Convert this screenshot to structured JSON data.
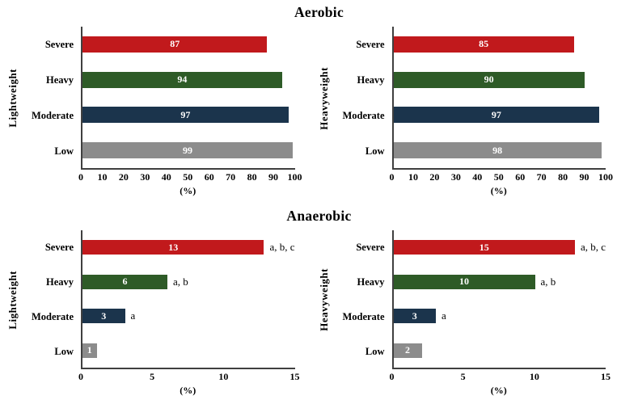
{
  "colors": {
    "bars": [
      "#C1191C",
      "#2E5B27",
      "#1B344C",
      "#8C8C8C"
    ],
    "bar_value_text": "#FFFFFF",
    "axis": "#404040",
    "text": "#000000",
    "background": "#FFFFFF"
  },
  "chart_data": [
    {
      "type": "bar",
      "orientation": "horizontal",
      "title": "Aerobic",
      "group": "Lightweight",
      "categories": [
        "Severe",
        "Heavy",
        "Moderate",
        "Low"
      ],
      "values": [
        87,
        94,
        97,
        99
      ],
      "annotations": [
        "",
        "",
        "",
        ""
      ],
      "xlabel": "(%)",
      "xlim": [
        0,
        100
      ],
      "xticks": [
        0,
        10,
        20,
        30,
        40,
        50,
        60,
        70,
        80,
        90,
        100
      ],
      "grid": false,
      "legend": false
    },
    {
      "type": "bar",
      "orientation": "horizontal",
      "title": "Aerobic",
      "group": "Heavyweight",
      "categories": [
        "Severe",
        "Heavy",
        "Moderate",
        "Low"
      ],
      "values": [
        85,
        90,
        97,
        98
      ],
      "annotations": [
        "",
        "",
        "",
        ""
      ],
      "xlabel": "(%)",
      "xlim": [
        0,
        100
      ],
      "xticks": [
        0,
        10,
        20,
        30,
        40,
        50,
        60,
        70,
        80,
        90,
        100
      ],
      "grid": false,
      "legend": false
    },
    {
      "type": "bar",
      "orientation": "horizontal",
      "title": "Anaerobic",
      "group": "Lightweight",
      "categories": [
        "Severe",
        "Heavy",
        "Moderate",
        "Low"
      ],
      "values": [
        13,
        6,
        3,
        1
      ],
      "annotations": [
        "a, b, c",
        "a, b",
        "a",
        ""
      ],
      "xlabel": "(%)",
      "xlim": [
        0,
        15
      ],
      "xticks": [
        0,
        5,
        10,
        15
      ],
      "grid": false,
      "legend": false
    },
    {
      "type": "bar",
      "orientation": "horizontal",
      "title": "Anaerobic",
      "group": "Heavyweight",
      "categories": [
        "Severe",
        "Heavy",
        "Moderate",
        "Low"
      ],
      "values": [
        15,
        10,
        3,
        2
      ],
      "annotations": [
        "a, b, c",
        "a, b",
        "a",
        ""
      ],
      "xlabel": "(%)",
      "xlim": [
        0,
        15
      ],
      "xticks": [
        0,
        5,
        10,
        15
      ],
      "grid": false,
      "legend": false
    }
  ]
}
